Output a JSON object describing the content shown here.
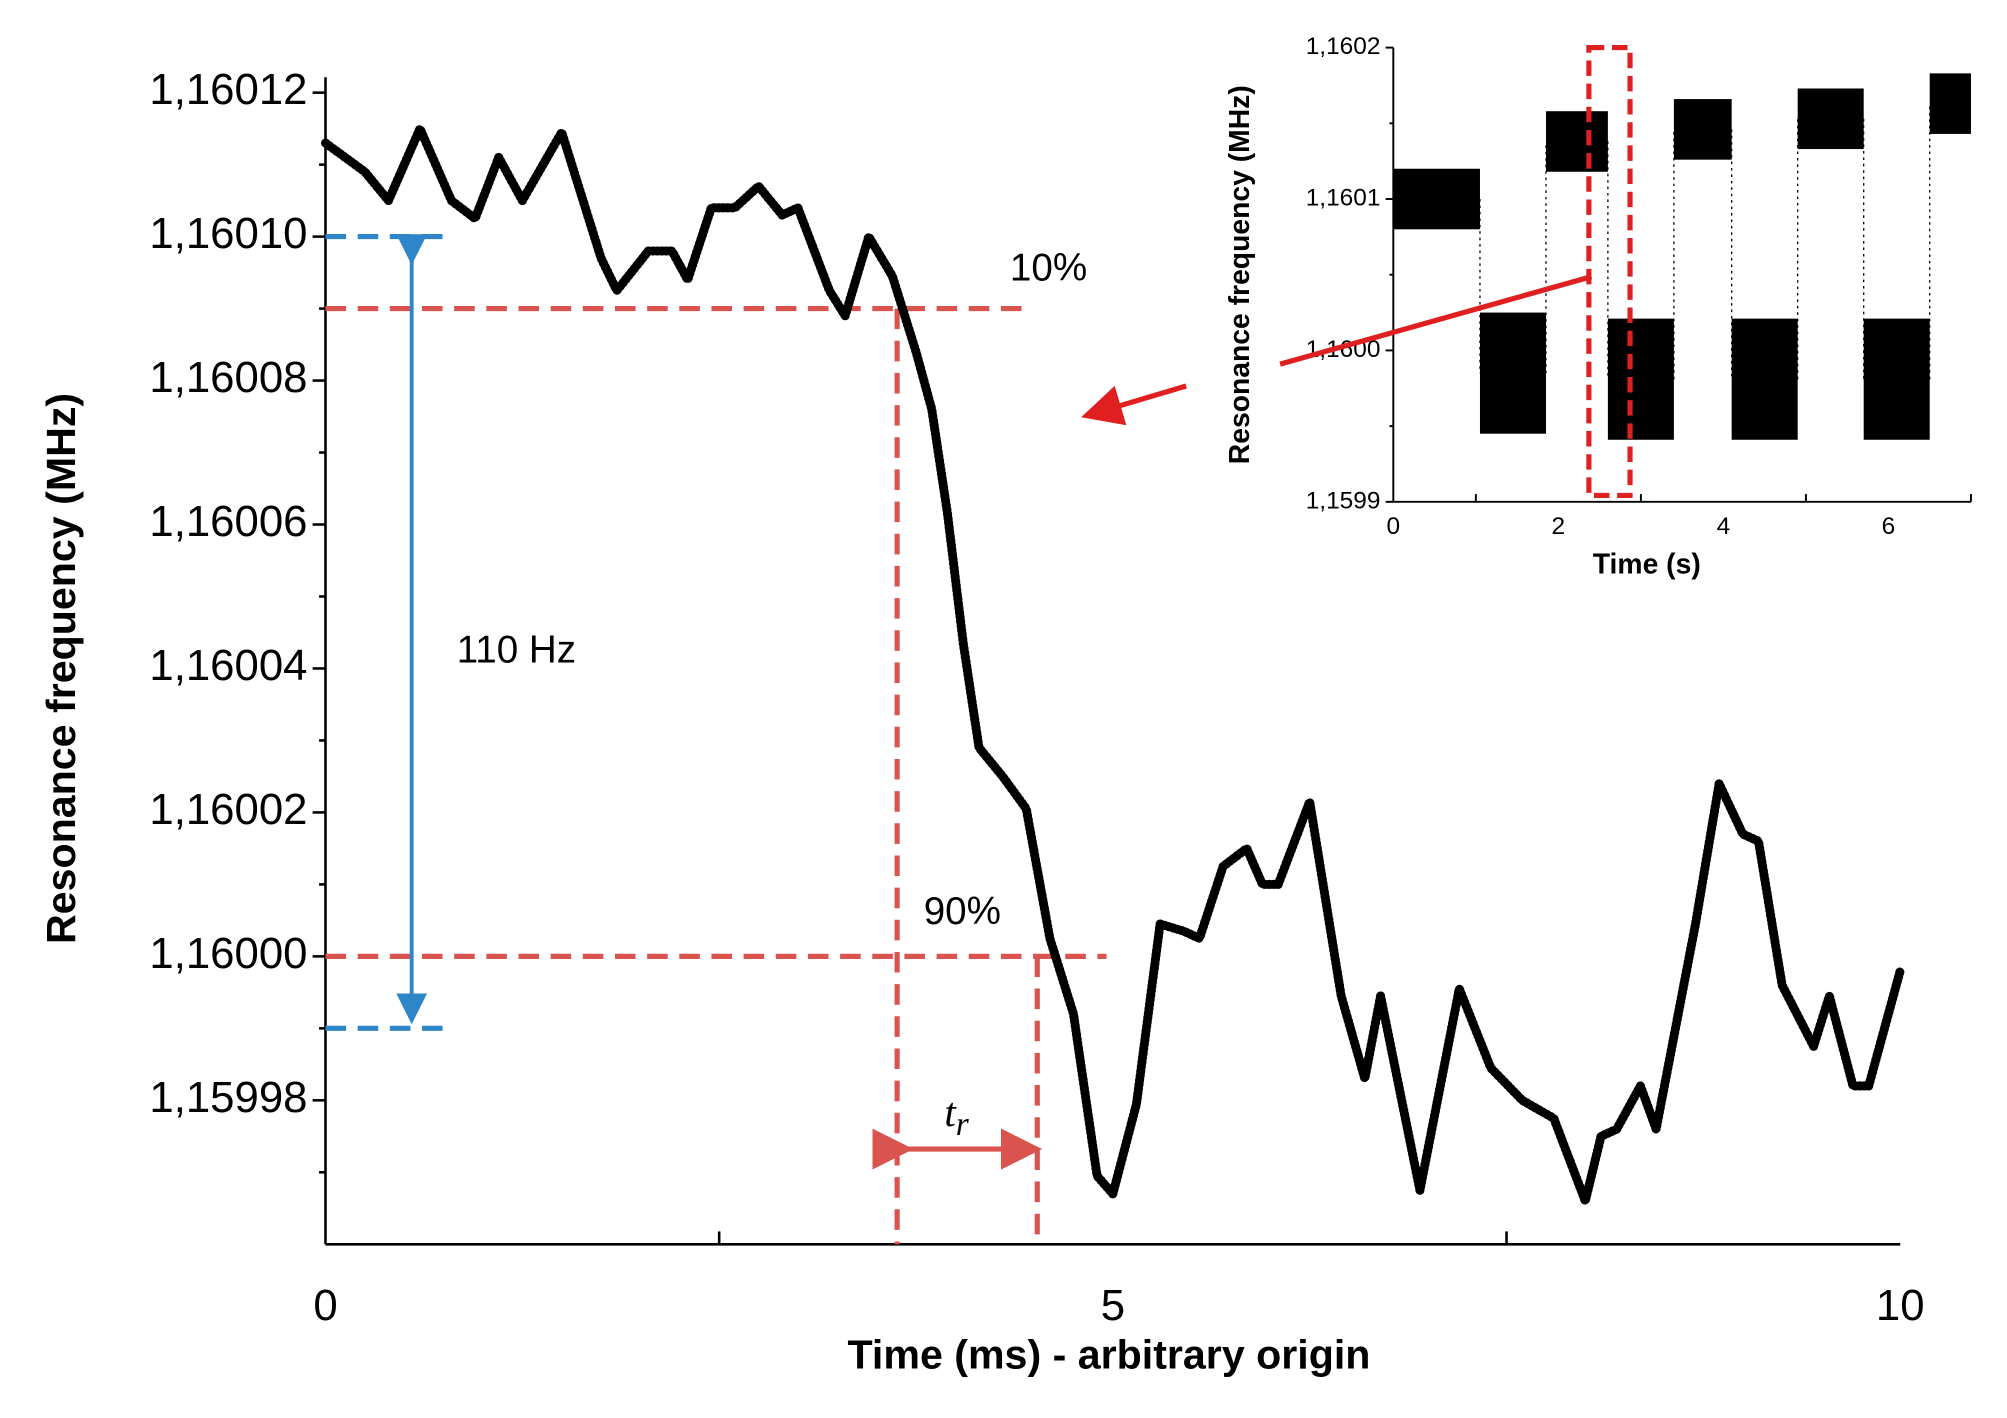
{
  "chart_data": [
    {
      "type": "line",
      "ylabel": "Resonance frequency (MHz)",
      "xlabel": "Time (ms) - arbitrary origin",
      "xlim": [
        0,
        10
      ],
      "xticks": [
        0,
        5,
        10
      ],
      "xminorticks": [
        2.5,
        7.5
      ],
      "ylim": [
        1.15996,
        1.16012
      ],
      "yticks": [
        {
          "value": 1.15998,
          "label": "1,15998"
        },
        {
          "value": 1.16,
          "label": "1,16000"
        },
        {
          "value": 1.16002,
          "label": "1,16002"
        },
        {
          "value": 1.16004,
          "label": "1,16004"
        },
        {
          "value": 1.16006,
          "label": "1,16006"
        },
        {
          "value": 1.16008,
          "label": "1,16008"
        },
        {
          "value": 1.1601,
          "label": "1,16010"
        },
        {
          "value": 1.16012,
          "label": "1,16012"
        }
      ],
      "yminorticks": [
        1.15997,
        1.15999,
        1.16001,
        1.16003,
        1.16005,
        1.16007,
        1.16009,
        1.16011
      ],
      "series": [
        {
          "color": "#000000",
          "x": [
            0,
            0.25,
            0.4,
            0.6,
            0.8,
            0.95,
            1.1,
            1.25,
            1.5,
            1.75,
            1.85,
            2.05,
            2.2,
            2.3,
            2.45,
            2.6,
            2.75,
            2.9,
            3.0,
            3.2,
            3.3,
            3.45,
            3.6,
            3.75,
            3.85,
            3.95,
            4.05,
            4.15,
            4.3,
            4.45,
            4.6,
            4.75,
            4.9,
            5.0,
            5.15,
            5.3,
            5.45,
            5.55,
            5.7,
            5.85,
            5.95,
            6.05,
            6.25,
            6.45,
            6.6,
            6.7,
            6.95,
            7.2,
            7.4,
            7.6,
            7.8,
            8.0,
            8.1,
            8.2,
            8.35,
            8.45,
            8.7,
            8.85,
            9.0,
            9.1,
            9.25,
            9.45,
            9.55,
            9.7,
            9.8,
            10.0
          ],
          "values": [
            1.160113,
            1.160109,
            1.160105,
            1.160115,
            1.160105,
            1.1601025,
            1.160111,
            1.160105,
            1.1601145,
            1.160097,
            1.1600925,
            1.160098,
            1.160098,
            1.160094,
            1.160104,
            1.160104,
            1.160107,
            1.160103,
            1.160104,
            1.1600925,
            1.160089,
            1.1601,
            1.1600945,
            1.160084,
            1.160076,
            1.1600615,
            1.1600435,
            1.160029,
            1.160025,
            1.1600205,
            1.1600025,
            1.159992,
            1.1599695,
            1.159967,
            1.1599795,
            1.1600045,
            1.1600035,
            1.1600025,
            1.1600125,
            1.160015,
            1.16001,
            1.16001,
            1.1600215,
            1.1599945,
            1.159983,
            1.1599945,
            1.1599675,
            1.1599955,
            1.1599845,
            1.15998,
            1.1599775,
            1.159966,
            1.159975,
            1.159976,
            1.159982,
            1.159976,
            1.1600045,
            1.160024,
            1.160017,
            1.160016,
            1.159996,
            1.1599875,
            1.1599945,
            1.159982,
            1.159982,
            1.159998
          ]
        }
      ],
      "reference_lines": [
        {
          "y": 1.16009,
          "x": [
            0,
            4.44
          ],
          "color": "#d9534f"
        },
        {
          "y": 1.16,
          "x": [
            0,
            4.96
          ],
          "color": "#d9534f"
        },
        {
          "y": 1.1601,
          "x": [
            0,
            0.75
          ],
          "color": "#2e86c8"
        },
        {
          "y": 1.15999,
          "x": [
            0,
            0.75
          ],
          "color": "#2e86c8"
        }
      ],
      "vertical_lines": [
        {
          "x": 3.63,
          "y_top": 1.16009,
          "color": "#d9534f"
        },
        {
          "x": 4.52,
          "y_top": 1.16,
          "color": "#d9534f"
        }
      ],
      "annotations": {
        "p10": "10%",
        "p90": "90%",
        "span": "110 Hz",
        "rise_base": "t",
        "rise_sub": "r"
      }
    },
    {
      "type": "step",
      "ylabel": "Resonance frequency (MHz)",
      "xlabel": "Time (s)",
      "xlim": [
        0,
        7
      ],
      "xticks": [
        0,
        2,
        4,
        6
      ],
      "xminorticks": [
        1,
        3,
        5,
        7
      ],
      "ylim": [
        1.1599,
        1.1602
      ],
      "yticks": [
        {
          "value": 1.1599,
          "label": "1,1599"
        },
        {
          "value": 1.16,
          "label": "1,1600"
        },
        {
          "value": 1.1601,
          "label": "1,1601"
        },
        {
          "value": 1.1602,
          "label": "1,1602"
        }
      ],
      "yminorticks": [
        1.15995,
        1.16005,
        1.16015
      ],
      "color": "#000000",
      "segments_x": [
        [
          0,
          1.05
        ],
        [
          1.05,
          1.85
        ],
        [
          1.85,
          2.6
        ],
        [
          2.6,
          3.4
        ],
        [
          3.4,
          4.1
        ],
        [
          4.1,
          4.9
        ],
        [
          4.9,
          5.7
        ],
        [
          5.7,
          6.5
        ],
        [
          6.5,
          7
        ]
      ],
      "values": [
        1.1601,
        1.159985,
        1.160138,
        1.159981,
        1.160146,
        1.159981,
        1.160153,
        1.159981,
        1.160163
      ],
      "noise": [
        2e-05,
        4e-05,
        2e-05,
        4e-05,
        2e-05,
        4e-05,
        2e-05,
        4e-05,
        2e-05
      ]
    }
  ]
}
